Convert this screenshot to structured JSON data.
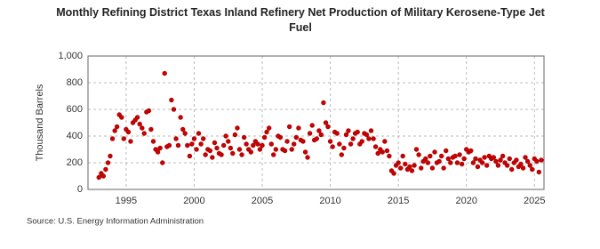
{
  "chart_data": {
    "type": "scatter",
    "title": "Monthly Refining District Texas Inland Refinery Net Production of Military Kerosene-Type Jet Fuel",
    "ylabel": "Thousand Barrels",
    "source": "Source: U.S. Energy Information Administration",
    "color": "#cc0000",
    "grid": true,
    "xlim": [
      1992.2,
      2025.7
    ],
    "ylim": [
      0,
      1000
    ],
    "xticks": [
      1995,
      2000,
      2005,
      2010,
      2015,
      2020,
      2025
    ],
    "yticks": [
      0,
      200,
      400,
      600,
      800,
      {
        "value": 1000,
        "label": "1,000"
      }
    ],
    "x": [
      1993,
      1993.17,
      1993.33,
      1993.5,
      1993.67,
      1993.83,
      1994,
      1994.17,
      1994.33,
      1994.5,
      1994.67,
      1994.83,
      1995,
      1995.17,
      1995.33,
      1995.5,
      1995.67,
      1995.83,
      1996,
      1996.17,
      1996.33,
      1996.5,
      1996.67,
      1996.83,
      1997,
      1997.17,
      1997.33,
      1997.5,
      1997.67,
      1997.83,
      1998,
      1998.17,
      1998.33,
      1998.5,
      1998.67,
      1998.83,
      1999,
      1999.17,
      1999.33,
      1999.5,
      1999.67,
      1999.83,
      2000,
      2000.17,
      2000.33,
      2000.5,
      2000.67,
      2000.83,
      2001,
      2001.17,
      2001.33,
      2001.5,
      2001.67,
      2001.83,
      2002,
      2002.17,
      2002.33,
      2002.5,
      2002.67,
      2002.83,
      2003,
      2003.17,
      2003.33,
      2003.5,
      2003.67,
      2003.83,
      2004,
      2004.17,
      2004.33,
      2004.5,
      2004.67,
      2004.83,
      2005,
      2005.17,
      2005.33,
      2005.5,
      2005.67,
      2005.83,
      2006,
      2006.17,
      2006.33,
      2006.5,
      2006.67,
      2006.83,
      2007,
      2007.17,
      2007.33,
      2007.5,
      2007.67,
      2007.83,
      2008,
      2008.17,
      2008.33,
      2008.5,
      2008.67,
      2008.83,
      2009,
      2009.17,
      2009.33,
      2009.5,
      2009.67,
      2009.83,
      2010,
      2010.17,
      2010.33,
      2010.5,
      2010.67,
      2010.83,
      2011,
      2011.17,
      2011.33,
      2011.5,
      2011.67,
      2011.83,
      2012,
      2012.17,
      2012.33,
      2012.5,
      2012.67,
      2012.83,
      2013,
      2013.17,
      2013.33,
      2013.5,
      2013.67,
      2013.83,
      2014,
      2014.17,
      2014.33,
      2014.5,
      2014.67,
      2014.83,
      2015,
      2015.17,
      2015.33,
      2015.5,
      2015.67,
      2015.83,
      2016,
      2016.17,
      2016.33,
      2016.5,
      2016.67,
      2016.83,
      2017,
      2017.17,
      2017.33,
      2017.5,
      2017.67,
      2017.83,
      2018,
      2018.17,
      2018.33,
      2018.5,
      2018.67,
      2018.83,
      2019,
      2019.17,
      2019.33,
      2019.5,
      2019.67,
      2019.83,
      2020,
      2020.17,
      2020.33,
      2020.5,
      2020.67,
      2020.83,
      2021,
      2021.17,
      2021.33,
      2021.5,
      2021.67,
      2021.83,
      2022,
      2022.17,
      2022.33,
      2022.5,
      2022.67,
      2022.83,
      2023,
      2023.17,
      2023.33,
      2023.5,
      2023.67,
      2023.83,
      2024,
      2024.17,
      2024.33,
      2024.5,
      2024.67,
      2024.83,
      2025,
      2025.17,
      2025.33,
      2025.5
    ],
    "values": [
      90,
      120,
      100,
      150,
      200,
      250,
      380,
      440,
      470,
      560,
      540,
      380,
      450,
      430,
      360,
      500,
      520,
      540,
      490,
      460,
      420,
      580,
      590,
      450,
      360,
      300,
      280,
      310,
      200,
      870,
      320,
      330,
      670,
      600,
      380,
      330,
      540,
      450,
      420,
      330,
      250,
      340,
      380,
      300,
      420,
      340,
      380,
      260,
      300,
      290,
      240,
      350,
      310,
      270,
      260,
      330,
      400,
      360,
      310,
      270,
      410,
      460,
      300,
      260,
      390,
      340,
      300,
      280,
      330,
      360,
      340,
      300,
      330,
      390,
      430,
      460,
      340,
      260,
      300,
      400,
      390,
      300,
      290,
      360,
      470,
      300,
      340,
      390,
      460,
      370,
      360,
      280,
      240,
      420,
      480,
      370,
      380,
      440,
      410,
      650,
      500,
      470,
      360,
      320,
      430,
      420,
      340,
      260,
      310,
      410,
      440,
      340,
      380,
      420,
      430,
      340,
      360,
      420,
      410,
      380,
      440,
      380,
      320,
      270,
      300,
      280,
      360,
      290,
      250,
      140,
      120,
      180,
      200,
      160,
      250,
      190,
      150,
      170,
      140,
      180,
      300,
      260,
      160,
      210,
      230,
      200,
      250,
      160,
      280,
      200,
      210,
      250,
      160,
      290,
      230,
      200,
      240,
      250,
      200,
      260,
      190,
      230,
      300,
      280,
      290,
      200,
      230,
      170,
      220,
      200,
      240,
      180,
      250,
      230,
      240,
      210,
      180,
      220,
      250,
      200,
      180,
      230,
      150,
      200,
      220,
      170,
      190,
      160,
      240,
      210,
      180,
      150,
      230,
      210,
      130,
      220
    ]
  }
}
